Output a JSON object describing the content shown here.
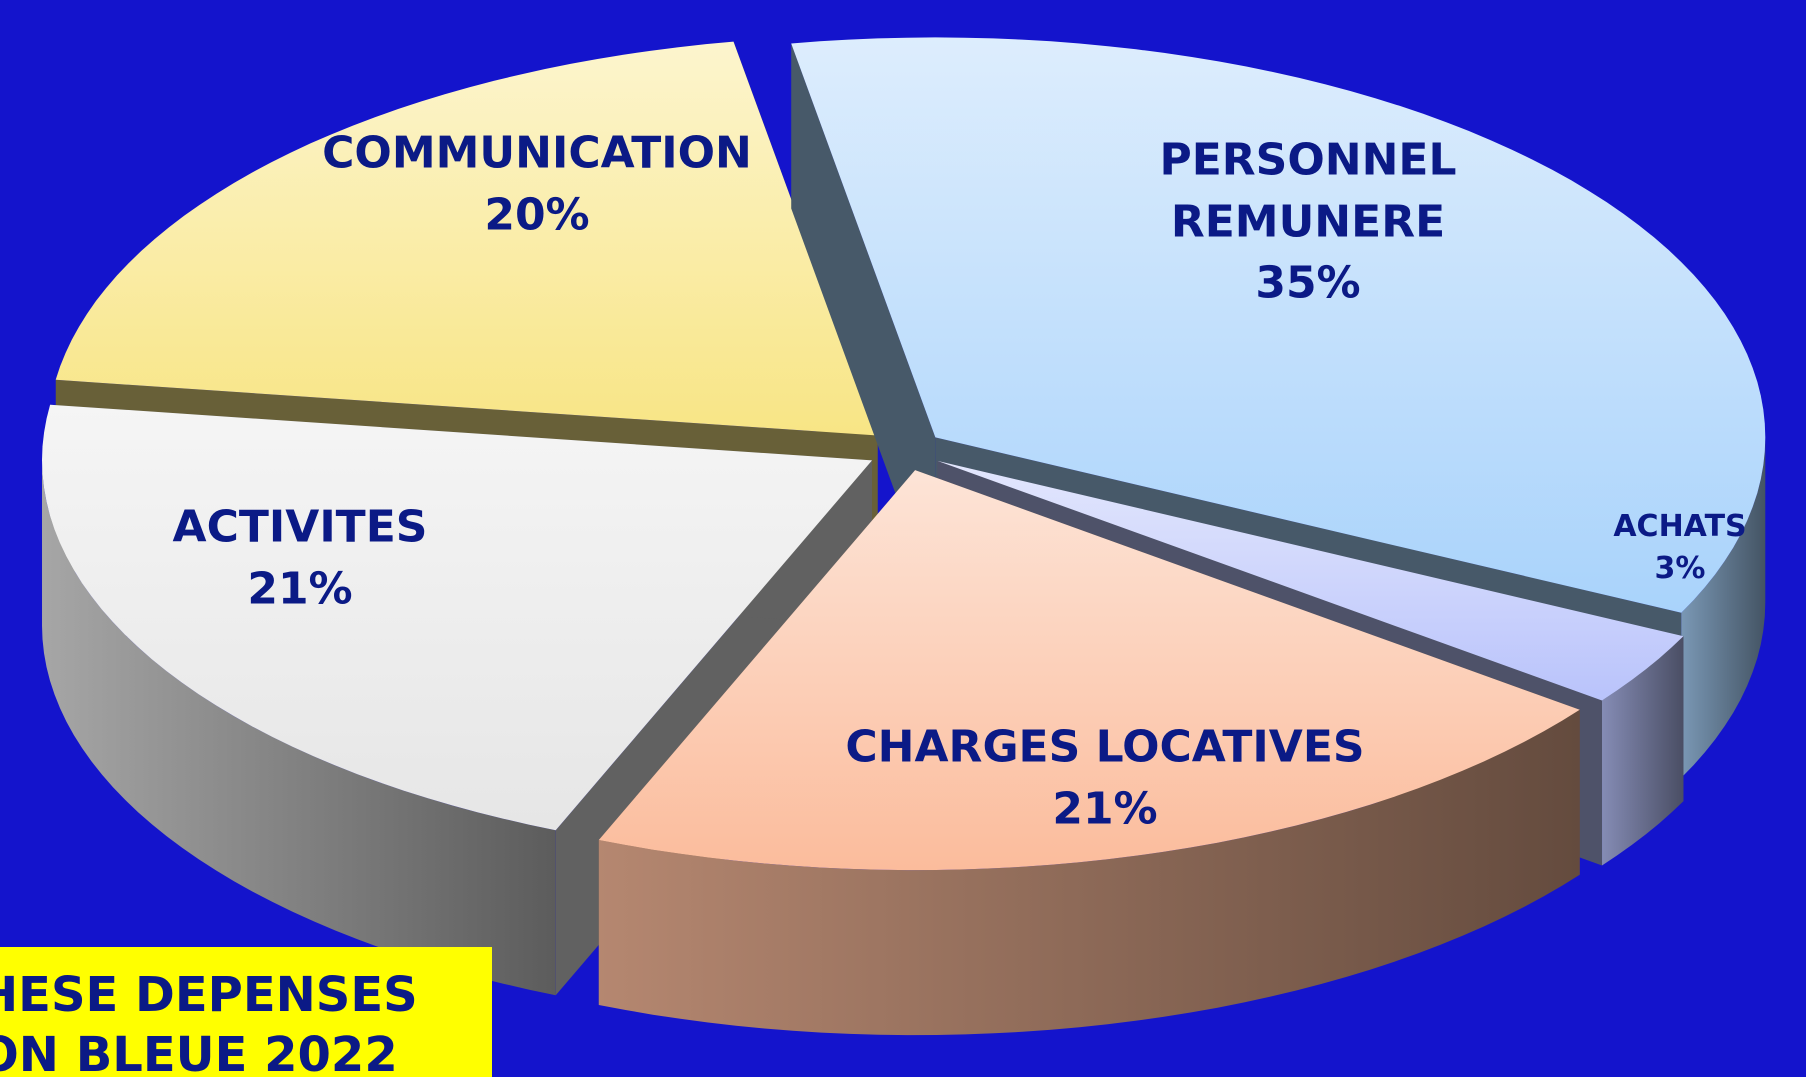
{
  "chart_data": {
    "type": "pie",
    "title_lines": [
      "HESE DEPENSES",
      "ON BLEUE 2022"
    ],
    "categories": [
      "PERSONNEL REMUNERE",
      "ACHATS",
      "CHARGES LOCATIVES",
      "ACTIVITES",
      "COMMUNICATION"
    ],
    "values": [
      35,
      3,
      21,
      21,
      20
    ],
    "value_labels": [
      "35%",
      "3%",
      "21%",
      "21%",
      "20%"
    ],
    "colors": [
      "#a9d3fb",
      "#b9c3fb",
      "#fbbc9c",
      "#e6e6e6",
      "#f8e585"
    ],
    "start_angle": -100
  }
}
